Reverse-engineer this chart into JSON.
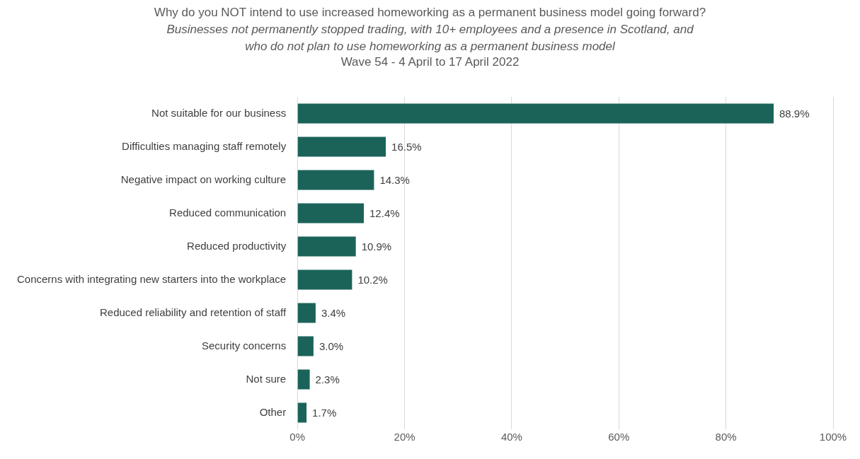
{
  "chart_data": {
    "type": "bar",
    "orientation": "horizontal",
    "title": "Why do you NOT intend to use increased homeworking as a permanent business model going forward?",
    "subtitle": "Businesses not permanently stopped trading, with 10+ employees and a presence in Scotland, and who do not plan to use homeworking as a permanent business model",
    "annotations": [
      "Wave 54 - 4 April to 17 April 2022"
    ],
    "categories": [
      "Not suitable for our business",
      "Difficulties managing staff remotely",
      "Negative impact on working culture",
      "Reduced communication",
      "Reduced productivity",
      "Concerns with integrating new starters into the workplace",
      "Reduced reliability and retention of staff",
      "Security concerns",
      "Not sure",
      "Other"
    ],
    "values": [
      88.9,
      16.5,
      14.3,
      12.4,
      10.9,
      10.2,
      3.4,
      3.0,
      2.3,
      1.7
    ],
    "value_labels": [
      "88.9%",
      "16.5%",
      "14.3%",
      "12.4%",
      "10.9%",
      "10.2%",
      "3.4%",
      "3.0%",
      "2.3%",
      "1.7%"
    ],
    "color": "#1b6359",
    "xlim": [
      0,
      100
    ],
    "xticks": [
      {
        "value": 0,
        "label": "0%"
      },
      {
        "value": 20,
        "label": "20%"
      },
      {
        "value": 40,
        "label": "40%"
      },
      {
        "value": 60,
        "label": "60%"
      },
      {
        "value": 80,
        "label": "80%"
      },
      {
        "value": 100,
        "label": "100%"
      }
    ],
    "grid": "x",
    "legend": false
  }
}
